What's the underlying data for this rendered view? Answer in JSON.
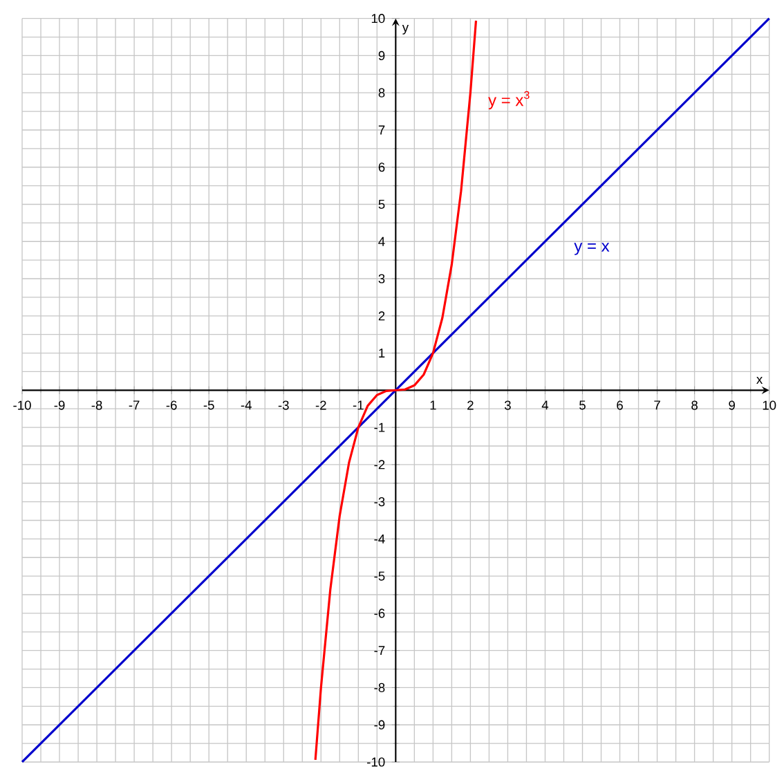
{
  "chart_data": {
    "type": "line",
    "xlabel": "x",
    "ylabel": "y",
    "xlim": [
      -10,
      10
    ],
    "ylim": [
      -10,
      10
    ],
    "xticks": [
      -10,
      -9,
      -8,
      -7,
      -6,
      -5,
      -4,
      -3,
      -2,
      -1,
      {
        "value": 0,
        "label": null
      },
      1,
      2,
      3,
      4,
      5,
      6,
      7,
      8,
      9,
      10
    ],
    "yticks": [
      -10,
      -9,
      -8,
      -7,
      -6,
      -5,
      -4,
      -3,
      -2,
      -1,
      {
        "value": 0,
        "label": null
      },
      1,
      2,
      3,
      4,
      5,
      6,
      7,
      8,
      9,
      10
    ],
    "grid": true,
    "series": [
      {
        "name": "y = x",
        "color": "#0000cc",
        "x": [
          -10,
          10
        ],
        "values": [
          -10,
          10
        ]
      },
      {
        "name": "y = x$^{3}$",
        "color": "#ff0000",
        "x": [
          -2.15,
          -2,
          -1.75,
          -1.5,
          -1.25,
          -1,
          -0.75,
          -0.5,
          -0.25,
          0,
          0.25,
          0.5,
          0.75,
          1,
          1.25,
          1.5,
          1.75,
          2,
          2.15
        ],
        "values": [
          -9.94,
          -8,
          -5.36,
          -3.38,
          -1.95,
          -1,
          -0.42,
          -0.13,
          -0.02,
          0,
          0.02,
          0.13,
          0.42,
          1,
          1.95,
          3.38,
          5.36,
          8,
          9.94
        ]
      }
    ]
  }
}
